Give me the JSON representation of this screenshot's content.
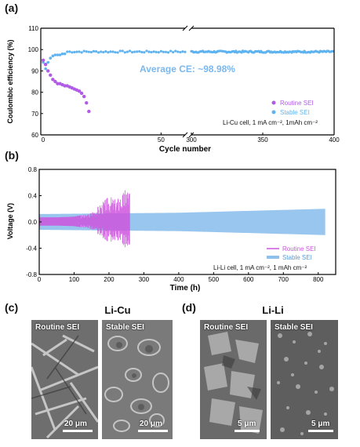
{
  "panels": {
    "a": {
      "letter": "(a)"
    },
    "b": {
      "letter": "(b)"
    },
    "c": {
      "letter": "(c)",
      "title": "Li-Cu"
    },
    "d": {
      "letter": "(d)",
      "title": "Li-Li"
    }
  },
  "chart_data": [
    {
      "id": "a",
      "type": "scatter",
      "ylabel": "Coulombic efficiency (%)",
      "xlabel": "Cycle number",
      "ylim": [
        60,
        110
      ],
      "y_ticks": [
        60,
        70,
        80,
        90,
        100,
        110
      ],
      "x_segment1": {
        "range": [
          0,
          60
        ],
        "ticks": [
          0,
          50
        ]
      },
      "x_segment2": {
        "range": [
          300,
          400
        ],
        "ticks": [
          300,
          350,
          400
        ]
      },
      "annotation": "Average CE: ~98.98%",
      "note": "Li-Cu cell, 1 mA cm⁻², 1mAh  cm⁻²",
      "legend_placement": "bottom-right",
      "colors": {
        "routine": "#b05ce6",
        "stable": "#5fb3ef",
        "annotation": "#7ab8ee"
      },
      "series": [
        {
          "name": "Routine SEI",
          "x": [
            1,
            2,
            3,
            4,
            5,
            6,
            7,
            8,
            9,
            10,
            11,
            12,
            13,
            14,
            15,
            16,
            17,
            18,
            19,
            20
          ],
          "y": [
            95,
            93,
            90,
            88,
            86,
            85,
            84,
            84,
            83.5,
            83,
            83,
            82.5,
            82,
            81.5,
            81,
            80.5,
            79.5,
            78,
            75,
            71
          ]
        },
        {
          "name": "Stable SEI",
          "stable_start": [
            [
              1,
              94
            ],
            [
              2,
              91
            ],
            [
              3,
              94
            ],
            [
              4,
              96
            ],
            [
              5,
              97
            ],
            [
              6,
              97.5
            ],
            [
              7,
              97.5
            ],
            [
              8,
              97.5
            ],
            [
              9,
              98
            ],
            [
              10,
              98
            ]
          ],
          "stable_level": 98.98
        }
      ]
    },
    {
      "id": "b",
      "type": "line",
      "ylabel": "Voltage (V)",
      "xlabel": "Time (h)",
      "ylim": [
        -0.8,
        0.8
      ],
      "xlim": [
        0,
        850
      ],
      "y_ticks": [
        "-0.8",
        "-0.4",
        "0.0",
        "0.4",
        "0.8"
      ],
      "x_ticks": [
        0,
        100,
        200,
        300,
        400,
        500,
        600,
        700,
        800
      ],
      "note": "Li-Li cell, 1 mA cm⁻², 1 mAh cm⁻²",
      "legend_placement": "bottom-right",
      "colors": {
        "routine": "#cc55dd",
        "stable": "#8ec0ec"
      },
      "series": [
        {
          "name": "Routine SEI",
          "t_end_h": 260,
          "envelope_t": [
            0,
            50,
            100,
            140,
            160,
            180,
            200,
            220,
            240,
            250,
            260
          ],
          "envelope_v": [
            0.07,
            0.07,
            0.08,
            0.12,
            0.2,
            0.3,
            0.4,
            0.35,
            0.45,
            0.55,
            0.5
          ]
        },
        {
          "name": "Stable SEI",
          "t_end_h": 820,
          "envelope_t": [
            0,
            400,
            820
          ],
          "envelope_v": [
            0.12,
            0.14,
            0.2
          ]
        }
      ]
    }
  ],
  "sem_images": [
    {
      "label": "Routine SEI",
      "scale": "20 μm"
    },
    {
      "label": "Stable SEI",
      "scale": "20 μm"
    },
    {
      "label": "Routine SEI",
      "scale": "5 μm"
    },
    {
      "label": "Stable SEI",
      "scale": "5 μm"
    }
  ]
}
